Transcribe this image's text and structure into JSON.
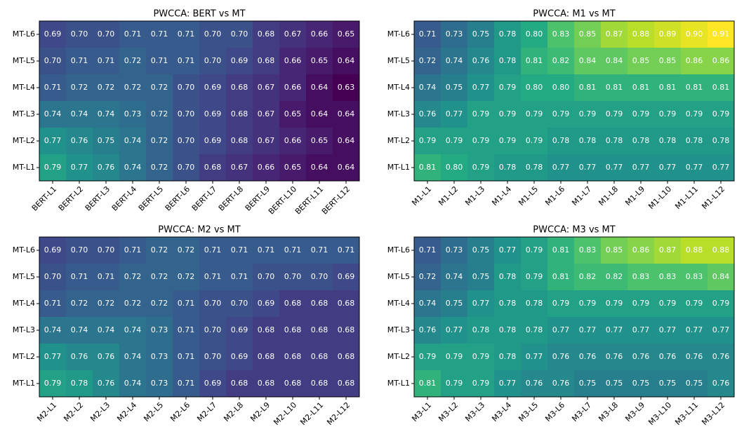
{
  "chart_data": [
    {
      "type": "heatmap",
      "title": "PWCCA: BERT vs MT",
      "x": [
        "BERT-L1",
        "BERT-L2",
        "BERT-L3",
        "BERT-L4",
        "BERT-L5",
        "BERT-L6",
        "BERT-L7",
        "BERT-L8",
        "BERT-L9",
        "BERT-L10",
        "BERT-L11",
        "BERT-L12"
      ],
      "y": [
        "MT-L6",
        "MT-L5",
        "MT-L4",
        "MT-L3",
        "MT-L2",
        "MT-L1"
      ],
      "values": [
        [
          0.69,
          0.7,
          0.7,
          0.71,
          0.71,
          0.71,
          0.7,
          0.7,
          0.68,
          0.67,
          0.66,
          0.65
        ],
        [
          0.7,
          0.71,
          0.71,
          0.72,
          0.71,
          0.71,
          0.7,
          0.69,
          0.68,
          0.66,
          0.65,
          0.64
        ],
        [
          0.71,
          0.72,
          0.72,
          0.72,
          0.72,
          0.7,
          0.69,
          0.68,
          0.67,
          0.66,
          0.64,
          0.63
        ],
        [
          0.74,
          0.74,
          0.74,
          0.73,
          0.72,
          0.7,
          0.69,
          0.68,
          0.67,
          0.65,
          0.64,
          0.64
        ],
        [
          0.77,
          0.76,
          0.75,
          0.74,
          0.72,
          0.7,
          0.69,
          0.68,
          0.67,
          0.66,
          0.65,
          0.64
        ],
        [
          0.79,
          0.77,
          0.76,
          0.74,
          0.72,
          0.7,
          0.68,
          0.67,
          0.66,
          0.65,
          0.64,
          0.64
        ]
      ],
      "value_labels": [
        [
          "0.69",
          "0.70",
          "0.70",
          "0.71",
          "0.71",
          "0.71",
          "0.70",
          "0.70",
          "0.68",
          "0.67",
          "0.66",
          "0.65"
        ],
        [
          "0.70",
          "0.71",
          "0.71",
          "0.72",
          "0.71",
          "0.71",
          "0.70",
          "0.69",
          "0.68",
          "0.66",
          "0.65",
          "0.64"
        ],
        [
          "0.71",
          "0.72",
          "0.72",
          "0.72",
          "0.72",
          "0.70",
          "0.69",
          "0.68",
          "0.67",
          "0.66",
          "0.64",
          "0.63"
        ],
        [
          "0.74",
          "0.74",
          "0.74",
          "0.73",
          "0.72",
          "0.70",
          "0.69",
          "0.68",
          "0.67",
          "0.65",
          "0.64",
          "0.64"
        ],
        [
          "0.77",
          "0.76",
          "0.75",
          "0.74",
          "0.72",
          "0.70",
          "0.69",
          "0.68",
          "0.67",
          "0.66",
          "0.65",
          "0.64"
        ],
        [
          "0.79",
          "0.77",
          "0.76",
          "0.74",
          "0.72",
          "0.70",
          "0.68",
          "0.67",
          "0.66",
          "0.65",
          "0.64",
          "0.64"
        ]
      ]
    },
    {
      "type": "heatmap",
      "title": "PWCCA: M1 vs MT",
      "x": [
        "M1-L1",
        "M1-L2",
        "M1-L3",
        "M1-L4",
        "M1-L5",
        "M1-L6",
        "M1-L7",
        "M1-L8",
        "M1-L9",
        "M1-L10",
        "M1-L11",
        "M1-L12"
      ],
      "y": [
        "MT-L6",
        "MT-L5",
        "MT-L4",
        "MT-L3",
        "MT-L2",
        "MT-L1"
      ],
      "values": [
        [
          0.71,
          0.73,
          0.75,
          0.78,
          0.8,
          0.83,
          0.85,
          0.87,
          0.88,
          0.89,
          0.9,
          0.91
        ],
        [
          0.72,
          0.74,
          0.76,
          0.78,
          0.81,
          0.82,
          0.84,
          0.84,
          0.85,
          0.85,
          0.86,
          0.86
        ],
        [
          0.74,
          0.75,
          0.77,
          0.79,
          0.8,
          0.8,
          0.81,
          0.81,
          0.81,
          0.81,
          0.81,
          0.81
        ],
        [
          0.76,
          0.77,
          0.79,
          0.79,
          0.79,
          0.79,
          0.79,
          0.79,
          0.79,
          0.79,
          0.79,
          0.79
        ],
        [
          0.79,
          0.79,
          0.79,
          0.79,
          0.79,
          0.78,
          0.78,
          0.78,
          0.78,
          0.78,
          0.78,
          0.78
        ],
        [
          0.81,
          0.8,
          0.79,
          0.78,
          0.78,
          0.77,
          0.77,
          0.77,
          0.77,
          0.77,
          0.77,
          0.77
        ]
      ],
      "value_labels": [
        [
          "0.71",
          "0.73",
          "0.75",
          "0.78",
          "0.80",
          "0.83",
          "0.85",
          "0.87",
          "0.88",
          "0.89",
          "0.90",
          "0.91"
        ],
        [
          "0.72",
          "0.74",
          "0.76",
          "0.78",
          "0.81",
          "0.82",
          "0.84",
          "0.84",
          "0.85",
          "0.85",
          "0.86",
          "0.86"
        ],
        [
          "0.74",
          "0.75",
          "0.77",
          "0.79",
          "0.80",
          "0.80",
          "0.81",
          "0.81",
          "0.81",
          "0.81",
          "0.81",
          "0.81"
        ],
        [
          "0.76",
          "0.77",
          "0.79",
          "0.79",
          "0.79",
          "0.79",
          "0.79",
          "0.79",
          "0.79",
          "0.79",
          "0.79",
          "0.79"
        ],
        [
          "0.79",
          "0.79",
          "0.79",
          "0.79",
          "0.79",
          "0.78",
          "0.78",
          "0.78",
          "0.78",
          "0.78",
          "0.78",
          "0.78"
        ],
        [
          "0.81",
          "0.80",
          "0.79",
          "0.78",
          "0.78",
          "0.77",
          "0.77",
          "0.77",
          "0.77",
          "0.77",
          "0.77",
          "0.77"
        ]
      ]
    },
    {
      "type": "heatmap",
      "title": "PWCCA: M2 vs MT",
      "x": [
        "M2-L1",
        "M2-L2",
        "M2-L3",
        "M2-L4",
        "M2-L5",
        "M2-L6",
        "M2-L7",
        "M2-L8",
        "M2-L9",
        "M2-L10",
        "M2-L11",
        "M2-L12"
      ],
      "y": [
        "MT-L6",
        "MT-L5",
        "MT-L4",
        "MT-L3",
        "MT-L2",
        "MT-L1"
      ],
      "values": [
        [
          0.69,
          0.7,
          0.7,
          0.71,
          0.72,
          0.72,
          0.71,
          0.71,
          0.71,
          0.71,
          0.71,
          0.71
        ],
        [
          0.7,
          0.71,
          0.71,
          0.72,
          0.72,
          0.72,
          0.71,
          0.71,
          0.7,
          0.7,
          0.7,
          0.69
        ],
        [
          0.71,
          0.72,
          0.72,
          0.72,
          0.72,
          0.71,
          0.7,
          0.7,
          0.69,
          0.68,
          0.68,
          0.68
        ],
        [
          0.74,
          0.74,
          0.74,
          0.74,
          0.73,
          0.71,
          0.7,
          0.69,
          0.68,
          0.68,
          0.68,
          0.68
        ],
        [
          0.77,
          0.76,
          0.76,
          0.74,
          0.73,
          0.71,
          0.7,
          0.69,
          0.68,
          0.68,
          0.68,
          0.68
        ],
        [
          0.79,
          0.78,
          0.76,
          0.74,
          0.73,
          0.71,
          0.69,
          0.68,
          0.68,
          0.68,
          0.68,
          0.68
        ]
      ],
      "value_labels": [
        [
          "0.69",
          "0.70",
          "0.70",
          "0.71",
          "0.72",
          "0.72",
          "0.71",
          "0.71",
          "0.71",
          "0.71",
          "0.71",
          "0.71"
        ],
        [
          "0.70",
          "0.71",
          "0.71",
          "0.72",
          "0.72",
          "0.72",
          "0.71",
          "0.71",
          "0.70",
          "0.70",
          "0.70",
          "0.69"
        ],
        [
          "0.71",
          "0.72",
          "0.72",
          "0.72",
          "0.72",
          "0.71",
          "0.70",
          "0.70",
          "0.69",
          "0.68",
          "0.68",
          "0.68"
        ],
        [
          "0.74",
          "0.74",
          "0.74",
          "0.74",
          "0.73",
          "0.71",
          "0.70",
          "0.69",
          "0.68",
          "0.68",
          "0.68",
          "0.68"
        ],
        [
          "0.77",
          "0.76",
          "0.76",
          "0.74",
          "0.73",
          "0.71",
          "0.70",
          "0.69",
          "0.68",
          "0.68",
          "0.68",
          "0.68"
        ],
        [
          "0.79",
          "0.78",
          "0.76",
          "0.74",
          "0.73",
          "0.71",
          "0.69",
          "0.68",
          "0.68",
          "0.68",
          "0.68",
          "0.68"
        ]
      ]
    },
    {
      "type": "heatmap",
      "title": "PWCCA: M3 vs MT",
      "x": [
        "M3-L1",
        "M3-L2",
        "M3-L3",
        "M3-L4",
        "M3-L5",
        "M3-L6",
        "M3-L7",
        "M3-L8",
        "M3-L9",
        "M3-L10",
        "M3-L11",
        "M3-L12"
      ],
      "y": [
        "MT-L6",
        "MT-L5",
        "MT-L4",
        "MT-L3",
        "MT-L2",
        "MT-L1"
      ],
      "values": [
        [
          0.71,
          0.73,
          0.75,
          0.77,
          0.79,
          0.81,
          0.83,
          0.85,
          0.86,
          0.87,
          0.88,
          0.88
        ],
        [
          0.72,
          0.74,
          0.75,
          0.78,
          0.79,
          0.81,
          0.82,
          0.82,
          0.83,
          0.83,
          0.83,
          0.84
        ],
        [
          0.74,
          0.75,
          0.77,
          0.78,
          0.78,
          0.79,
          0.79,
          0.79,
          0.79,
          0.79,
          0.79,
          0.79
        ],
        [
          0.76,
          0.77,
          0.78,
          0.78,
          0.78,
          0.77,
          0.77,
          0.77,
          0.77,
          0.77,
          0.77,
          0.77
        ],
        [
          0.79,
          0.79,
          0.79,
          0.78,
          0.77,
          0.76,
          0.76,
          0.76,
          0.76,
          0.76,
          0.76,
          0.76
        ],
        [
          0.81,
          0.79,
          0.79,
          0.77,
          0.76,
          0.76,
          0.75,
          0.75,
          0.75,
          0.75,
          0.75,
          0.76
        ]
      ],
      "value_labels": [
        [
          "0.71",
          "0.73",
          "0.75",
          "0.77",
          "0.79",
          "0.81",
          "0.83",
          "0.85",
          "0.86",
          "0.87",
          "0.88",
          "0.88"
        ],
        [
          "0.72",
          "0.74",
          "0.75",
          "0.78",
          "0.79",
          "0.81",
          "0.82",
          "0.82",
          "0.83",
          "0.83",
          "0.83",
          "0.84"
        ],
        [
          "0.74",
          "0.75",
          "0.77",
          "0.78",
          "0.78",
          "0.79",
          "0.79",
          "0.79",
          "0.79",
          "0.79",
          "0.79",
          "0.79"
        ],
        [
          "0.76",
          "0.77",
          "0.78",
          "0.78",
          "0.78",
          "0.77",
          "0.77",
          "0.77",
          "0.77",
          "0.77",
          "0.77",
          "0.77"
        ],
        [
          "0.79",
          "0.79",
          "0.79",
          "0.78",
          "0.77",
          "0.76",
          "0.76",
          "0.76",
          "0.76",
          "0.76",
          "0.76",
          "0.76"
        ],
        [
          "0.81",
          "0.79",
          "0.79",
          "0.77",
          "0.76",
          "0.76",
          "0.75",
          "0.75",
          "0.75",
          "0.75",
          "0.75",
          "0.76"
        ]
      ]
    }
  ]
}
